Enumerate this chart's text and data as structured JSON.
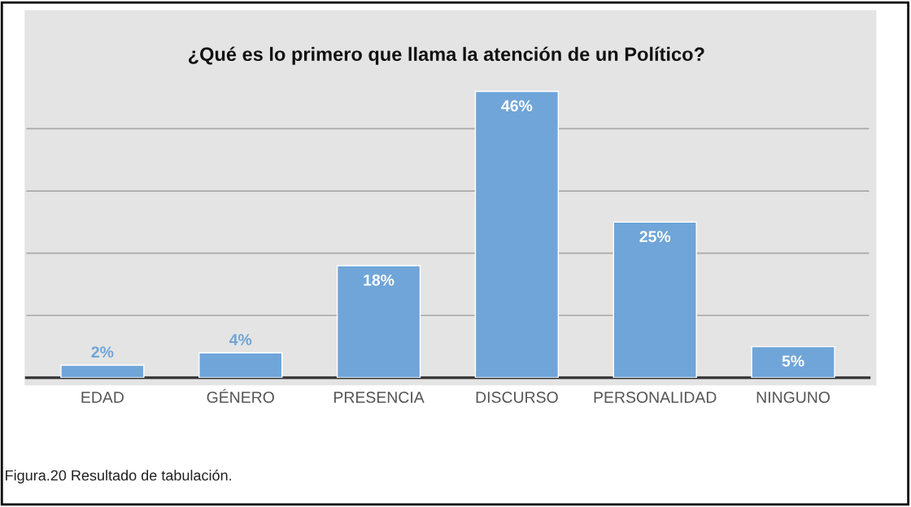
{
  "chart_data": {
    "type": "bar",
    "title": "¿Qué es lo primero que llama la atención de un Político?",
    "categories": [
      "EDAD",
      "GÉNERO",
      "PRESENCIA",
      "DISCURSO",
      "PERSONALIDAD",
      "NINGUNO"
    ],
    "values": [
      2,
      4,
      18,
      46,
      25,
      5
    ],
    "color": "#6fa5d8",
    "data_labels": true,
    "value_labels": [
      "2%",
      "4%",
      "18%",
      "46%",
      "25%",
      "5%"
    ],
    "grid": "y",
    "tick_labels": "x",
    "annotations": [
      "Figura.20 Resultado de tabulación."
    ]
  }
}
